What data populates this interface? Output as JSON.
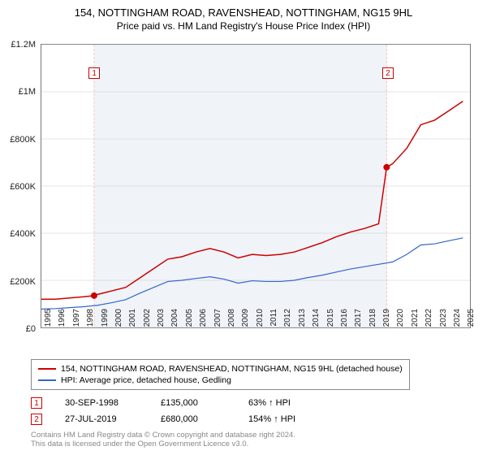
{
  "title": "154, NOTTINGHAM ROAD, RAVENSHEAD, NOTTINGHAM, NG15 9HL",
  "subtitle": "Price paid vs. HM Land Registry's House Price Index (HPI)",
  "chart": {
    "type": "line",
    "background_color": "#ffffff",
    "shade_color": "#f0f3f8",
    "border_color": "#777777",
    "grid_color": "#cccccc",
    "sale_line_color": "#f9c0c0",
    "x_years": [
      1995,
      1996,
      1997,
      1998,
      1999,
      2000,
      2001,
      2002,
      2003,
      2004,
      2005,
      2006,
      2007,
      2008,
      2009,
      2010,
      2011,
      2012,
      2013,
      2014,
      2015,
      2016,
      2017,
      2018,
      2019,
      2020,
      2021,
      2022,
      2023,
      2024,
      2025
    ],
    "xlim": [
      1995,
      2025.5
    ],
    "ylim": [
      0,
      1200000
    ],
    "yticks": [
      0,
      200000,
      400000,
      600000,
      800000,
      1000000,
      1200000
    ],
    "ytick_labels": [
      "£0",
      "£200K",
      "£400K",
      "£600K",
      "£800K",
      "£1M",
      "£1.2M"
    ],
    "label_fontsize": 11,
    "shade_ranges": [
      [
        1998.75,
        2019.57
      ]
    ],
    "series": [
      {
        "name": "property",
        "label": "154, NOTTINGHAM ROAD, RAVENSHEAD, NOTTINGHAM, NG15 9HL (detached house)",
        "color": "#cc0000",
        "line_width": 1.5,
        "data": [
          [
            1995,
            120000
          ],
          [
            1996,
            120000
          ],
          [
            1997,
            125000
          ],
          [
            1998,
            130000
          ],
          [
            1998.75,
            135000
          ],
          [
            1999,
            140000
          ],
          [
            2000,
            155000
          ],
          [
            2001,
            170000
          ],
          [
            2002,
            210000
          ],
          [
            2003,
            250000
          ],
          [
            2004,
            290000
          ],
          [
            2005,
            300000
          ],
          [
            2006,
            320000
          ],
          [
            2007,
            335000
          ],
          [
            2008,
            320000
          ],
          [
            2009,
            295000
          ],
          [
            2010,
            310000
          ],
          [
            2011,
            305000
          ],
          [
            2012,
            310000
          ],
          [
            2013,
            320000
          ],
          [
            2014,
            340000
          ],
          [
            2015,
            360000
          ],
          [
            2016,
            385000
          ],
          [
            2017,
            405000
          ],
          [
            2018,
            420000
          ],
          [
            2019,
            440000
          ],
          [
            2019.57,
            680000
          ],
          [
            2020,
            695000
          ],
          [
            2021,
            760000
          ],
          [
            2022,
            860000
          ],
          [
            2023,
            880000
          ],
          [
            2024,
            920000
          ],
          [
            2025,
            960000
          ]
        ]
      },
      {
        "name": "hpi",
        "label": "HPI: Average price, detached house, Gedling",
        "color": "#3366cc",
        "line_width": 1.2,
        "data": [
          [
            1995,
            78000
          ],
          [
            1996,
            80000
          ],
          [
            1997,
            84000
          ],
          [
            1998,
            88000
          ],
          [
            1999,
            94000
          ],
          [
            2000,
            105000
          ],
          [
            2001,
            118000
          ],
          [
            2002,
            145000
          ],
          [
            2003,
            170000
          ],
          [
            2004,
            195000
          ],
          [
            2005,
            200000
          ],
          [
            2006,
            208000
          ],
          [
            2007,
            215000
          ],
          [
            2008,
            205000
          ],
          [
            2009,
            188000
          ],
          [
            2010,
            198000
          ],
          [
            2011,
            195000
          ],
          [
            2012,
            195000
          ],
          [
            2013,
            200000
          ],
          [
            2014,
            212000
          ],
          [
            2015,
            222000
          ],
          [
            2016,
            235000
          ],
          [
            2017,
            248000
          ],
          [
            2018,
            258000
          ],
          [
            2019,
            268000
          ],
          [
            2020,
            278000
          ],
          [
            2021,
            310000
          ],
          [
            2022,
            350000
          ],
          [
            2023,
            355000
          ],
          [
            2024,
            368000
          ],
          [
            2025,
            380000
          ]
        ]
      }
    ],
    "sale_markers": [
      {
        "n": "1",
        "x": 1998.75,
        "y": 135000,
        "color": "#cc0000"
      },
      {
        "n": "2",
        "x": 2019.57,
        "y": 680000,
        "color": "#cc0000"
      }
    ]
  },
  "sales": [
    {
      "n": "1",
      "date": "30-SEP-1998",
      "price": "£135,000",
      "hpi": "63% ↑ HPI",
      "color": "#cc0000"
    },
    {
      "n": "2",
      "date": "27-JUL-2019",
      "price": "£680,000",
      "hpi": "154% ↑ HPI",
      "color": "#cc0000"
    }
  ],
  "footer": {
    "line1": "Contains HM Land Registry data © Crown copyright and database right 2024.",
    "line2": "This data is licensed under the Open Government Licence v3.0."
  }
}
